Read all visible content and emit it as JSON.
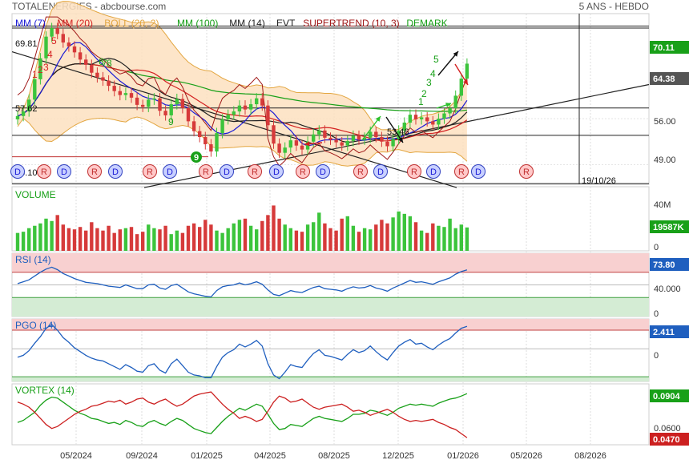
{
  "header": {
    "left": "TOTALENERGIES - abcbourse.com",
    "right": "5 ANS - HEBDO"
  },
  "indicators": [
    {
      "label": "MM (7)",
      "color": "#1a1ad6"
    },
    {
      "label": "MM (20)",
      "color": "#d42020"
    },
    {
      "label": "BOLL (20, 2)",
      "color": "#e3a640"
    },
    {
      "label": "MM (100)",
      "color": "#18a018"
    },
    {
      "label": "MM (14)",
      "color": "#222222"
    },
    {
      "label": "EVT",
      "color": "#222222"
    },
    {
      "label": "SUPERTREND (10, 3)",
      "color": "#a01818"
    },
    {
      "label": "DEMARK",
      "color": "#18a018"
    }
  ],
  "colors": {
    "up": "#3cc43c",
    "down": "#d63a3a",
    "line": "#1f5fbf",
    "overbought": "#f8d0d0",
    "oversold": "#d4ecd4",
    "boll_fill": "#fde1bf"
  },
  "chart_data": [
    {
      "type": "candlestick",
      "title": "",
      "ylim": [
        46,
        72
      ],
      "y_ticks": [
        "56.00",
        "49.00"
      ],
      "badges": [
        {
          "value": "70.11",
          "color": "#18a018"
        },
        {
          "value": "64.38",
          "color": "#555555"
        }
      ],
      "annotations": [
        "69.81",
        "57.62",
        "46.10",
        "53.46",
        "19/10/26"
      ],
      "demark_counts_up": [
        "1",
        "2",
        "3",
        "4",
        "5"
      ],
      "demark_counts_down": [
        "1",
        "2",
        "3",
        "4",
        "5",
        "6",
        "7",
        "8",
        "9"
      ],
      "demark_marker": "9",
      "earnings_markers": [
        "D",
        "R",
        "D",
        "R",
        "D",
        "R",
        "D",
        "R",
        "D",
        "R",
        "D",
        "R",
        "D",
        "R",
        "D",
        "R",
        "D",
        "R",
        "D",
        "R",
        "R"
      ],
      "x_tick_labels": [
        "05/2024",
        "09/2024",
        "01/2025",
        "04/2025",
        "08/2025",
        "12/2025",
        "01/2026",
        "05/2026",
        "08/2026"
      ],
      "close": [
        56.4,
        57.1,
        58.9,
        62.0,
        65.2,
        68.5,
        69.8,
        68.9,
        67.6,
        67.0,
        66.1,
        65.0,
        64.2,
        63.0,
        62.3,
        61.8,
        61.0,
        60.2,
        59.6,
        59.9,
        59.2,
        58.1,
        57.8,
        58.9,
        59.1,
        57.2,
        56.5,
        58.2,
        59.0,
        57.6,
        55.6,
        54.1,
        53.2,
        52.1,
        51.0,
        53.8,
        55.9,
        56.6,
        57.1,
        58.0,
        57.4,
        58.2,
        59.1,
        58.0,
        55.0,
        52.2,
        50.8,
        51.6,
        52.7,
        51.9,
        51.3,
        52.5,
        53.6,
        54.2,
        53.1,
        52.8,
        52.4,
        51.9,
        52.6,
        53.4,
        52.8,
        53.1,
        54.0,
        53.2,
        52.5,
        51.8,
        52.9,
        54.2,
        55.4,
        56.6,
        55.9,
        56.2,
        55.6,
        55.1,
        56.0,
        56.8,
        57.6,
        59.5,
        62.1,
        64.38
      ]
    },
    {
      "type": "bar",
      "title": "VOLUME",
      "y_ticks": [
        "40M",
        "0"
      ],
      "badge": "19587K",
      "values_k": [
        15,
        16,
        19,
        21,
        23,
        27,
        25,
        30,
        22,
        19,
        18,
        20,
        17,
        24,
        19,
        17,
        21,
        15,
        18,
        19,
        20,
        14,
        16,
        22,
        19,
        18,
        21,
        14,
        17,
        15,
        21,
        23,
        20,
        26,
        22,
        17,
        15,
        19,
        23,
        26,
        27,
        21,
        18,
        25,
        30,
        38,
        27,
        22,
        19,
        17,
        16,
        22,
        24,
        32,
        23,
        19,
        17,
        27,
        29,
        21,
        16,
        19,
        18,
        22,
        26,
        23,
        28,
        33,
        31,
        29,
        24,
        17,
        15,
        23,
        21,
        20,
        27,
        19,
        22,
        19.6
      ],
      "up": [
        1,
        1,
        1,
        1,
        1,
        1,
        1,
        0,
        0,
        0,
        0,
        0,
        0,
        0,
        0,
        0,
        0,
        0,
        0,
        1,
        0,
        0,
        0,
        1,
        1,
        0,
        0,
        1,
        1,
        0,
        0,
        0,
        0,
        0,
        0,
        1,
        1,
        1,
        1,
        1,
        0,
        1,
        1,
        0,
        0,
        0,
        0,
        1,
        1,
        0,
        0,
        1,
        1,
        1,
        0,
        0,
        0,
        0,
        1,
        1,
        0,
        1,
        1,
        0,
        0,
        0,
        1,
        1,
        1,
        1,
        0,
        1,
        0,
        0,
        1,
        1,
        1,
        1,
        1,
        1
      ]
    },
    {
      "type": "line",
      "title": "RSI (14)",
      "y_ticks": [
        "40.000",
        "0"
      ],
      "badge": "73.80",
      "ylim": [
        0,
        100
      ],
      "bands": [
        70,
        30
      ],
      "values": [
        52,
        55,
        58,
        64,
        70,
        75,
        78,
        74,
        68,
        64,
        60,
        57,
        54,
        53,
        52,
        50,
        48,
        47,
        46,
        50,
        47,
        44,
        44,
        50,
        51,
        45,
        43,
        49,
        51,
        45,
        39,
        36,
        34,
        32,
        31,
        41,
        47,
        49,
        50,
        53,
        50,
        52,
        55,
        51,
        42,
        35,
        33,
        37,
        41,
        39,
        38,
        42,
        46,
        48,
        44,
        43,
        42,
        40,
        44,
        47,
        45,
        46,
        49,
        45,
        43,
        40,
        45,
        49,
        53,
        57,
        54,
        55,
        53,
        51,
        55,
        58,
        61,
        67,
        71,
        73.8
      ]
    },
    {
      "type": "line",
      "title": "PGO (14)",
      "y_ticks": [
        "0"
      ],
      "badge": "2.411",
      "ylim": [
        -3.5,
        3.2
      ],
      "bands": [
        2.0,
        -3.0
      ],
      "values": [
        -0.9,
        -0.7,
        -0.2,
        0.6,
        1.3,
        2.2,
        2.6,
        2.0,
        1.2,
        0.7,
        0.1,
        -0.3,
        -0.7,
        -1.0,
        -1.2,
        -1.3,
        -1.6,
        -1.9,
        -2.2,
        -1.7,
        -2.0,
        -2.4,
        -2.5,
        -1.8,
        -1.6,
        -2.3,
        -2.6,
        -1.6,
        -1.1,
        -1.8,
        -2.5,
        -2.8,
        -2.9,
        -3.1,
        -3.1,
        -1.9,
        -0.9,
        -0.4,
        -0.1,
        0.5,
        0.2,
        0.5,
        0.9,
        0.3,
        -1.6,
        -2.8,
        -3.2,
        -2.5,
        -1.7,
        -1.9,
        -2.0,
        -1.2,
        -0.5,
        -0.1,
        -0.7,
        -0.8,
        -1.0,
        -1.2,
        -0.6,
        -0.1,
        -0.4,
        -0.2,
        0.3,
        -0.3,
        -0.8,
        -1.2,
        -0.4,
        0.3,
        0.7,
        1.0,
        0.5,
        0.6,
        0.2,
        -0.1,
        0.4,
        0.8,
        1.1,
        1.7,
        2.2,
        2.411
      ]
    },
    {
      "type": "line",
      "title": "VORTEX (14)",
      "y_ticks": [
        "0.0600"
      ],
      "badges": [
        {
          "value": "0.0904",
          "color": "#18a018"
        },
        {
          "value": "0.0470",
          "color": "#cc2020"
        }
      ],
      "ylim": [
        0.04,
        0.1
      ],
      "series": [
        {
          "color": "#18a018",
          "values": [
            0.062,
            0.064,
            0.068,
            0.072,
            0.079,
            0.084,
            0.087,
            0.086,
            0.082,
            0.078,
            0.074,
            0.071,
            0.069,
            0.066,
            0.065,
            0.063,
            0.061,
            0.062,
            0.06,
            0.064,
            0.062,
            0.059,
            0.058,
            0.062,
            0.064,
            0.061,
            0.059,
            0.063,
            0.066,
            0.064,
            0.06,
            0.056,
            0.054,
            0.052,
            0.051,
            0.057,
            0.063,
            0.068,
            0.072,
            0.076,
            0.074,
            0.077,
            0.08,
            0.078,
            0.07,
            0.061,
            0.055,
            0.056,
            0.06,
            0.059,
            0.058,
            0.062,
            0.066,
            0.068,
            0.066,
            0.065,
            0.064,
            0.063,
            0.066,
            0.07,
            0.07,
            0.071,
            0.074,
            0.073,
            0.071,
            0.069,
            0.072,
            0.076,
            0.078,
            0.08,
            0.079,
            0.08,
            0.079,
            0.078,
            0.081,
            0.083,
            0.085,
            0.086,
            0.088,
            0.0904
          ]
        },
        {
          "color": "#cc2020",
          "values": [
            0.082,
            0.08,
            0.077,
            0.072,
            0.066,
            0.06,
            0.056,
            0.058,
            0.062,
            0.066,
            0.07,
            0.073,
            0.075,
            0.078,
            0.079,
            0.081,
            0.083,
            0.082,
            0.084,
            0.08,
            0.082,
            0.085,
            0.086,
            0.082,
            0.08,
            0.083,
            0.085,
            0.081,
            0.078,
            0.08,
            0.084,
            0.088,
            0.09,
            0.091,
            0.092,
            0.086,
            0.08,
            0.075,
            0.071,
            0.066,
            0.068,
            0.066,
            0.063,
            0.065,
            0.073,
            0.082,
            0.088,
            0.086,
            0.082,
            0.083,
            0.085,
            0.081,
            0.077,
            0.075,
            0.077,
            0.078,
            0.079,
            0.08,
            0.077,
            0.073,
            0.074,
            0.072,
            0.069,
            0.071,
            0.073,
            0.075,
            0.072,
            0.068,
            0.065,
            0.063,
            0.064,
            0.063,
            0.064,
            0.065,
            0.062,
            0.06,
            0.057,
            0.055,
            0.051,
            0.047
          ]
        }
      ]
    }
  ]
}
